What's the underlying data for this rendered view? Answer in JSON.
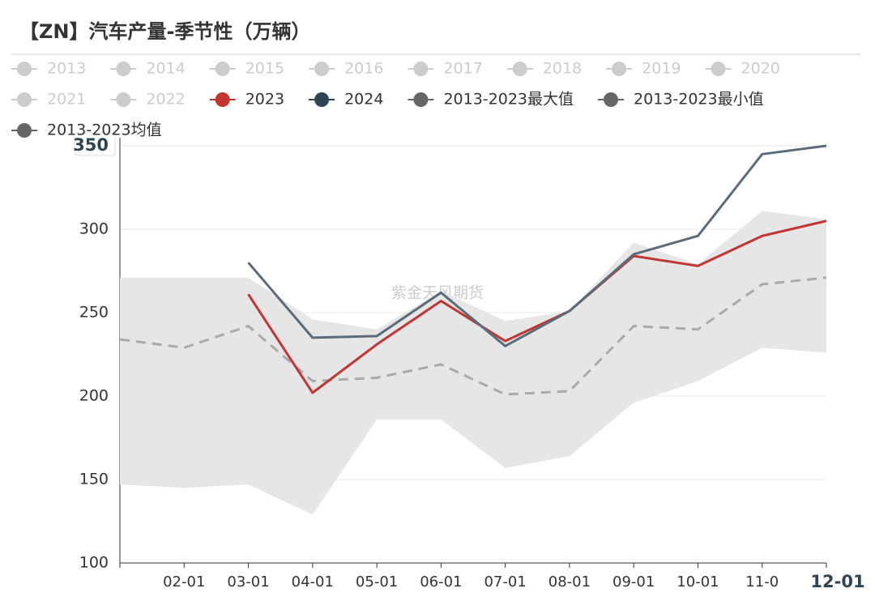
{
  "chart_data": {
    "type": "line",
    "title": "【ZN】汽车产量-季节性（万辆）",
    "watermark": "紫金天风期货",
    "categories": [
      null,
      "02-01",
      "03-01",
      "04-01",
      "05-01",
      "06-01",
      "07-01",
      "08-01",
      "09-01",
      "10-01",
      "11-0",
      "12-01"
    ],
    "ylim": [
      100,
      350
    ],
    "yticks": [
      100,
      150,
      200,
      250,
      300,
      350
    ],
    "grid": true,
    "legend": "top",
    "series": [
      {
        "name": "2013",
        "color": "#cccccc",
        "visible": false
      },
      {
        "name": "2014",
        "color": "#cccccc",
        "visible": false
      },
      {
        "name": "2015",
        "color": "#cccccc",
        "visible": false
      },
      {
        "name": "2016",
        "color": "#cccccc",
        "visible": false
      },
      {
        "name": "2017",
        "color": "#cccccc",
        "visible": false
      },
      {
        "name": "2018",
        "color": "#cccccc",
        "visible": false
      },
      {
        "name": "2019",
        "color": "#cccccc",
        "visible": false
      },
      {
        "name": "2020",
        "color": "#cccccc",
        "visible": false
      },
      {
        "name": "2021",
        "color": "#cccccc",
        "visible": false
      },
      {
        "name": "2022",
        "color": "#cccccc",
        "visible": false
      },
      {
        "name": "2023",
        "color": "#c23531",
        "style": "solid",
        "values": [
          null,
          null,
          261,
          202,
          231,
          257,
          233,
          251,
          284,
          278,
          296,
          305
        ]
      },
      {
        "name": "2024",
        "color": "#2f4554",
        "line_color": "#5a6b7b",
        "style": "solid",
        "values": [
          null,
          null,
          280,
          235,
          236,
          262,
          230,
          251,
          285,
          296,
          345,
          350
        ]
      },
      {
        "name": "2013-2023最大值",
        "color": "#666666",
        "style": "band_upper",
        "band_color": "#e6e6e6",
        "values": [
          271,
          271,
          271,
          246,
          240,
          263,
          245,
          251,
          292,
          279,
          311,
          306
        ]
      },
      {
        "name": "2013-2023最小值",
        "color": "#666666",
        "style": "band_lower",
        "values": [
          147,
          145,
          147,
          129,
          186,
          186,
          157,
          164,
          196,
          209,
          229,
          226
        ]
      },
      {
        "name": "2013-2023均值",
        "color": "#666666",
        "line_color": "#aaaaaa",
        "style": "dashed",
        "values": [
          234,
          229,
          242,
          209,
          211,
          219,
          201,
          203,
          242,
          240,
          267,
          271
        ]
      }
    ]
  }
}
